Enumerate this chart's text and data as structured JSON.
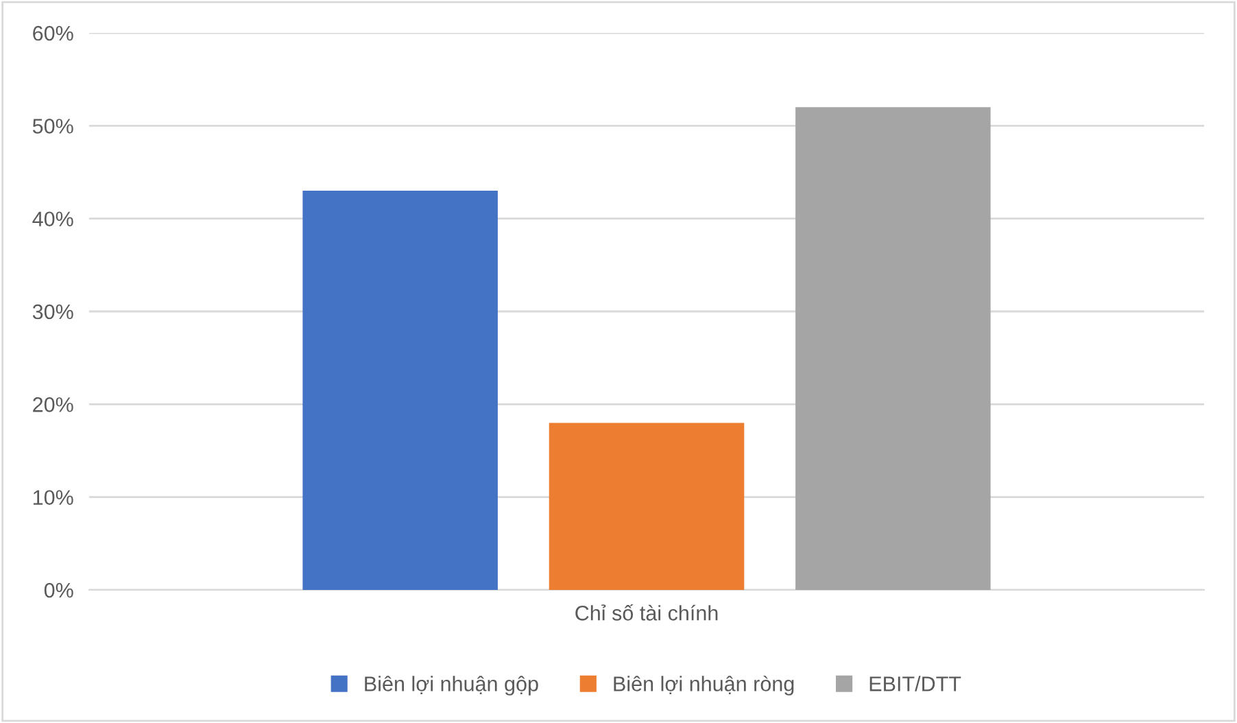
{
  "chart_data": {
    "type": "bar",
    "categories": [
      "Chỉ số tài chính"
    ],
    "series": [
      {
        "name": "Biên lợi nhuận gộp",
        "color": "#4472c4",
        "values": [
          43
        ]
      },
      {
        "name": "Biên lợi nhuận ròng",
        "color": "#ed7d31",
        "values": [
          18
        ]
      },
      {
        "name": "EBIT/DTT",
        "color": "#a5a5a5",
        "values": [
          52
        ]
      }
    ],
    "ylim": [
      0,
      60
    ],
    "yticks": [
      {
        "value": 0,
        "label": "0%"
      },
      {
        "value": 10,
        "label": "10%"
      },
      {
        "value": 20,
        "label": "20%"
      },
      {
        "value": 30,
        "label": "30%"
      },
      {
        "value": 40,
        "label": "40%"
      },
      {
        "value": 50,
        "label": "50%"
      },
      {
        "value": 60,
        "label": "60%"
      }
    ],
    "grid": "y",
    "legend": "bottom"
  }
}
